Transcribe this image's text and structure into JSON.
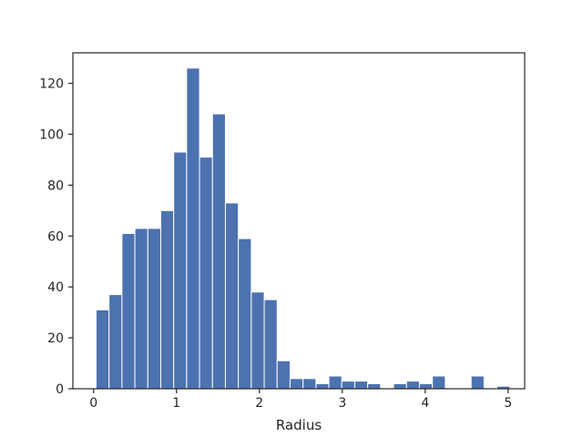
{
  "chart_data": {
    "type": "bar",
    "subtype": "histogram",
    "xlabel": "Radius",
    "ylabel": "",
    "title": "",
    "xlim": [
      -0.25,
      5.2
    ],
    "ylim": [
      0,
      132
    ],
    "xticks": [
      0,
      1,
      2,
      3,
      4,
      5
    ],
    "yticks": [
      0,
      20,
      40,
      60,
      80,
      100,
      120
    ],
    "bar_color": "#4c72b0",
    "edge_color": "#ffffff",
    "grid": false,
    "bins": [
      {
        "x0": 0.03,
        "x1": 0.186,
        "value": 31
      },
      {
        "x0": 0.186,
        "x1": 0.342,
        "value": 37
      },
      {
        "x0": 0.342,
        "x1": 0.498,
        "value": 61
      },
      {
        "x0": 0.498,
        "x1": 0.654,
        "value": 63
      },
      {
        "x0": 0.654,
        "x1": 0.81,
        "value": 63
      },
      {
        "x0": 0.81,
        "x1": 0.966,
        "value": 70
      },
      {
        "x0": 0.966,
        "x1": 1.122,
        "value": 93
      },
      {
        "x0": 1.122,
        "x1": 1.278,
        "value": 126
      },
      {
        "x0": 1.278,
        "x1": 1.434,
        "value": 91
      },
      {
        "x0": 1.434,
        "x1": 1.59,
        "value": 108
      },
      {
        "x0": 1.59,
        "x1": 1.746,
        "value": 73
      },
      {
        "x0": 1.746,
        "x1": 1.902,
        "value": 59
      },
      {
        "x0": 1.902,
        "x1": 2.058,
        "value": 38
      },
      {
        "x0": 2.058,
        "x1": 2.214,
        "value": 35
      },
      {
        "x0": 2.214,
        "x1": 2.37,
        "value": 11
      },
      {
        "x0": 2.37,
        "x1": 2.526,
        "value": 4
      },
      {
        "x0": 2.526,
        "x1": 2.682,
        "value": 4
      },
      {
        "x0": 2.682,
        "x1": 2.838,
        "value": 2
      },
      {
        "x0": 2.838,
        "x1": 2.994,
        "value": 5
      },
      {
        "x0": 2.994,
        "x1": 3.15,
        "value": 3
      },
      {
        "x0": 3.15,
        "x1": 3.306,
        "value": 3
      },
      {
        "x0": 3.306,
        "x1": 3.462,
        "value": 2
      },
      {
        "x0": 3.462,
        "x1": 3.618,
        "value": 0
      },
      {
        "x0": 3.618,
        "x1": 3.774,
        "value": 2
      },
      {
        "x0": 3.774,
        "x1": 3.93,
        "value": 3
      },
      {
        "x0": 3.93,
        "x1": 4.086,
        "value": 2
      },
      {
        "x0": 4.086,
        "x1": 4.242,
        "value": 5
      },
      {
        "x0": 4.242,
        "x1": 4.398,
        "value": 0
      },
      {
        "x0": 4.398,
        "x1": 4.554,
        "value": 0
      },
      {
        "x0": 4.554,
        "x1": 4.71,
        "value": 5
      },
      {
        "x0": 4.71,
        "x1": 4.866,
        "value": 0
      },
      {
        "x0": 4.866,
        "x1": 5.022,
        "value": 1
      }
    ]
  }
}
